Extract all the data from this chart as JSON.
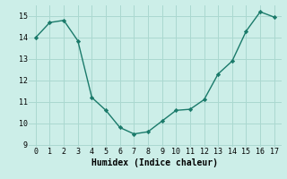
{
  "x": [
    0,
    1,
    2,
    3,
    4,
    5,
    6,
    7,
    8,
    9,
    10,
    11,
    12,
    13,
    14,
    15,
    16,
    17
  ],
  "y": [
    14.0,
    14.7,
    14.8,
    13.85,
    11.2,
    10.6,
    9.8,
    9.5,
    9.6,
    10.1,
    10.6,
    10.65,
    11.1,
    12.3,
    12.9,
    14.3,
    15.2,
    14.95
  ],
  "xlabel": "Humidex (Indice chaleur)",
  "xlim": [
    -0.5,
    17.5
  ],
  "ylim": [
    8.9,
    15.5
  ],
  "yticks": [
    9,
    10,
    11,
    12,
    13,
    14,
    15
  ],
  "xticks": [
    0,
    1,
    2,
    3,
    4,
    5,
    6,
    7,
    8,
    9,
    10,
    11,
    12,
    13,
    14,
    15,
    16,
    17
  ],
  "line_color": "#1a7a6a",
  "marker": "D",
  "marker_size": 2.2,
  "bg_color": "#cceee8",
  "grid_color": "#aad8d0",
  "line_width": 1.0,
  "tick_fontsize": 6.0,
  "xlabel_fontsize": 7.0
}
